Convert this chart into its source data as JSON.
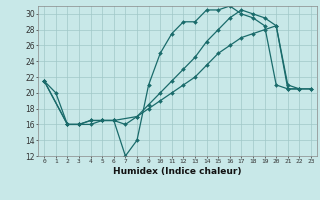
{
  "title": "",
  "xlabel": "Humidex (Indice chaleur)",
  "bg_color": "#c8e8e8",
  "grid_color": "#a0c8c8",
  "line_color": "#1a6b6b",
  "xlim": [
    -0.5,
    23.5
  ],
  "ylim": [
    12,
    31
  ],
  "xticks": [
    0,
    1,
    2,
    3,
    4,
    5,
    6,
    7,
    8,
    9,
    10,
    11,
    12,
    13,
    14,
    15,
    16,
    17,
    18,
    19,
    20,
    21,
    22,
    23
  ],
  "yticks": [
    12,
    14,
    16,
    18,
    20,
    22,
    24,
    26,
    28,
    30
  ],
  "curve1_x": [
    0,
    1,
    2,
    3,
    4,
    5,
    6,
    7,
    8,
    9,
    10,
    11,
    12,
    13,
    14,
    15,
    16,
    17,
    18,
    19,
    20,
    21,
    22
  ],
  "curve1_y": [
    21.5,
    20.0,
    16.0,
    16.0,
    16.0,
    16.5,
    16.5,
    12.0,
    14.0,
    21.0,
    25.0,
    27.5,
    29.0,
    29.0,
    30.5,
    30.5,
    31.0,
    30.0,
    29.5,
    28.5,
    21.0,
    20.5,
    20.5
  ],
  "curve2_x": [
    0,
    2,
    3,
    4,
    5,
    6,
    7,
    8,
    9,
    10,
    11,
    12,
    13,
    14,
    15,
    16,
    17,
    18,
    19,
    20,
    21,
    22,
    23
  ],
  "curve2_y": [
    21.5,
    16.0,
    16.0,
    16.5,
    16.5,
    16.5,
    16.0,
    17.0,
    18.0,
    19.0,
    20.0,
    21.0,
    22.0,
    23.5,
    25.0,
    26.0,
    27.0,
    27.5,
    28.0,
    28.5,
    20.5,
    20.5,
    20.5
  ],
  "curve3_x": [
    0,
    2,
    3,
    4,
    5,
    6,
    8,
    9,
    10,
    11,
    12,
    13,
    14,
    15,
    16,
    17,
    18,
    19,
    20,
    21,
    22,
    23
  ],
  "curve3_y": [
    21.5,
    16.0,
    16.0,
    16.5,
    16.5,
    16.5,
    17.0,
    18.5,
    20.0,
    21.5,
    23.0,
    24.5,
    26.5,
    28.0,
    29.5,
    30.5,
    30.0,
    29.5,
    28.5,
    21.0,
    20.5,
    20.5
  ]
}
